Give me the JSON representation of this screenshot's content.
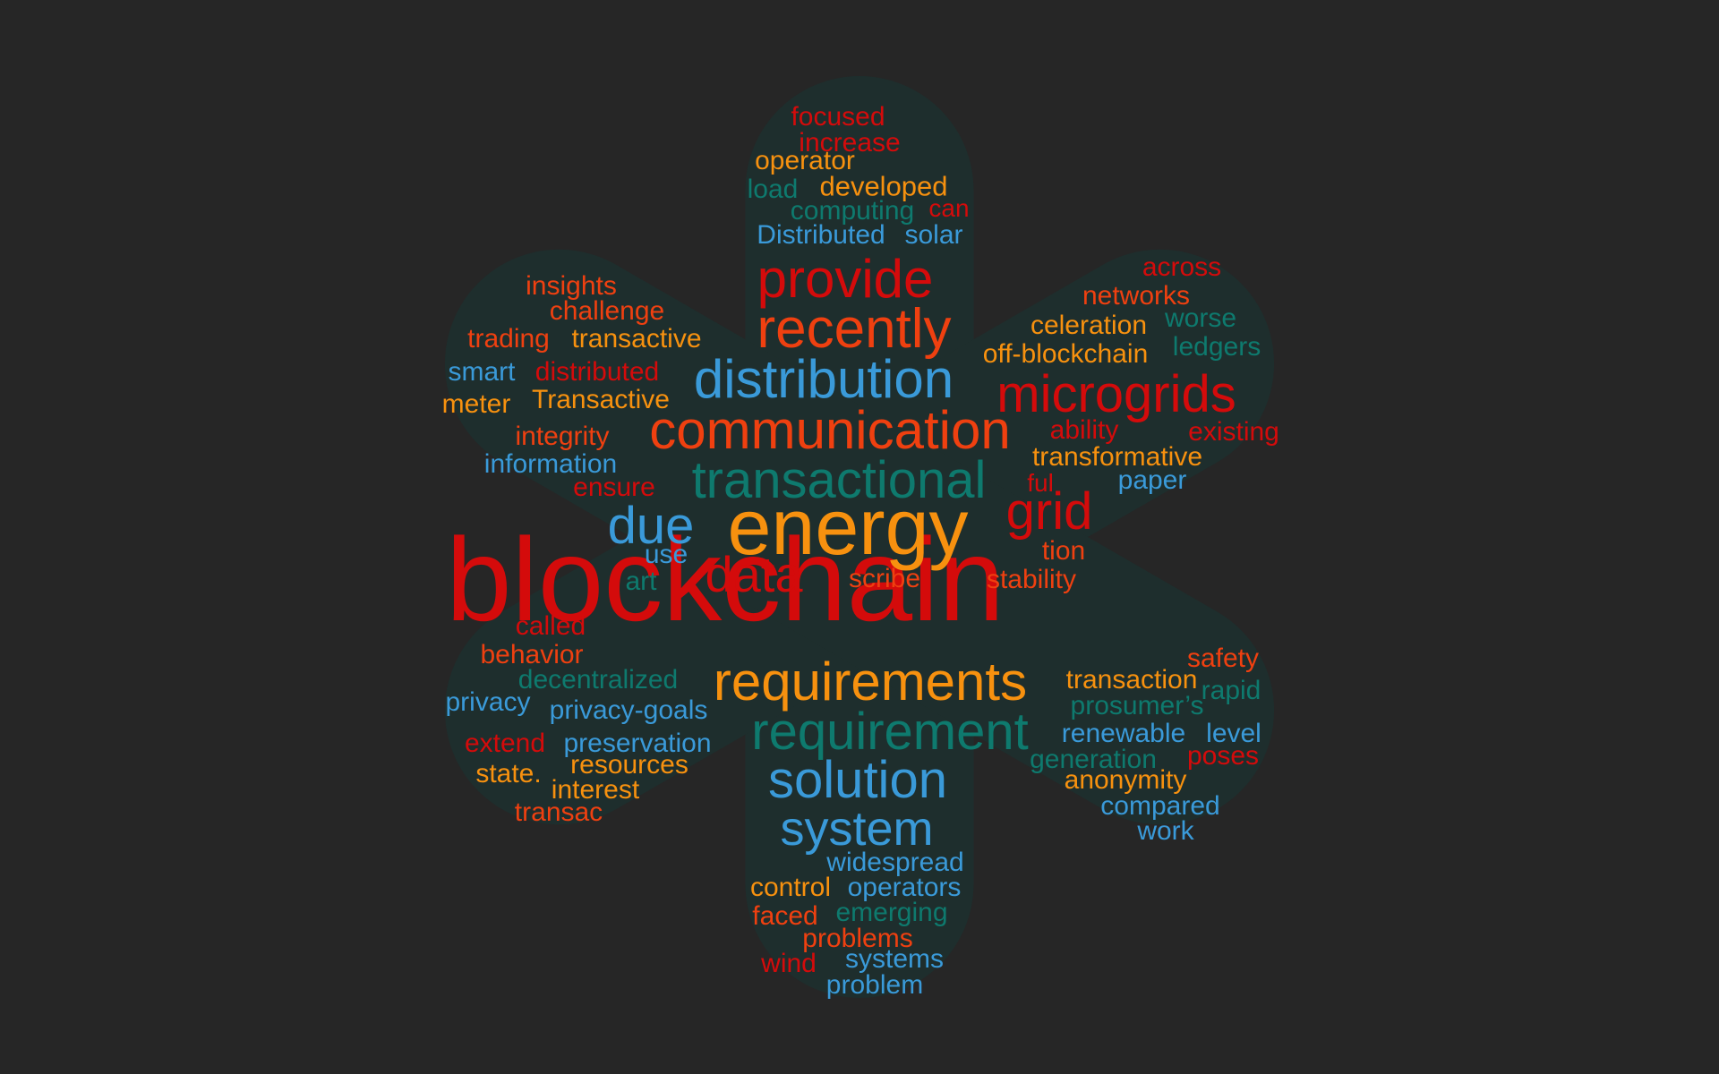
{
  "colors": {
    "background": "#262626",
    "shape_fill": "#1e2e2d",
    "red": "#d40b0b",
    "orange_red": "#ef4010",
    "orange": "#f7910f",
    "blue": "#3a9ad9",
    "teal": "#0e7a6e"
  },
  "words": [
    {
      "text": "blockchain",
      "color": "red"
    },
    {
      "text": "energy",
      "color": "orange"
    },
    {
      "text": "communication",
      "color": "orange_red"
    },
    {
      "text": "transactional",
      "color": "teal"
    },
    {
      "text": "distribution",
      "color": "blue"
    },
    {
      "text": "microgrids",
      "color": "red"
    },
    {
      "text": "recently",
      "color": "orange_red"
    },
    {
      "text": "provide",
      "color": "red"
    },
    {
      "text": "requirements",
      "color": "orange"
    },
    {
      "text": "requirement",
      "color": "teal"
    },
    {
      "text": "solution",
      "color": "blue"
    },
    {
      "text": "system",
      "color": "blue"
    },
    {
      "text": "grid",
      "color": "red"
    },
    {
      "text": "data",
      "color": "red"
    },
    {
      "text": "due",
      "color": "blue"
    },
    {
      "text": "focused",
      "color": "red"
    },
    {
      "text": "increase",
      "color": "red"
    },
    {
      "text": "operator",
      "color": "orange"
    },
    {
      "text": "developed",
      "color": "orange"
    },
    {
      "text": "load",
      "color": "teal"
    },
    {
      "text": "computing",
      "color": "teal"
    },
    {
      "text": "can",
      "color": "red"
    },
    {
      "text": "Distributed",
      "color": "blue"
    },
    {
      "text": "solar",
      "color": "blue"
    },
    {
      "text": "insights",
      "color": "orange_red"
    },
    {
      "text": "challenge",
      "color": "orange_red"
    },
    {
      "text": "trading",
      "color": "orange_red"
    },
    {
      "text": "transactive",
      "color": "orange"
    },
    {
      "text": "smart",
      "color": "blue"
    },
    {
      "text": "distributed",
      "color": "red"
    },
    {
      "text": "meter",
      "color": "orange"
    },
    {
      "text": "Transactive",
      "color": "orange"
    },
    {
      "text": "integrity",
      "color": "orange_red"
    },
    {
      "text": "information",
      "color": "blue"
    },
    {
      "text": "ensure",
      "color": "red"
    },
    {
      "text": "across",
      "color": "red"
    },
    {
      "text": "networks",
      "color": "orange_red"
    },
    {
      "text": "celeration",
      "color": "orange"
    },
    {
      "text": "worse",
      "color": "teal"
    },
    {
      "text": "off-blockchain",
      "color": "orange"
    },
    {
      "text": "ledgers",
      "color": "teal"
    },
    {
      "text": "ability",
      "color": "red"
    },
    {
      "text": "existing",
      "color": "red"
    },
    {
      "text": "transformative",
      "color": "orange"
    },
    {
      "text": "ful",
      "color": "red"
    },
    {
      "text": "paper",
      "color": "blue"
    },
    {
      "text": "tion",
      "color": "orange_red"
    },
    {
      "text": "stability",
      "color": "orange_red"
    },
    {
      "text": "use",
      "color": "blue"
    },
    {
      "text": "art",
      "color": "teal"
    },
    {
      "text": "scribe",
      "color": "orange_red"
    },
    {
      "text": "called",
      "color": "red"
    },
    {
      "text": "behavior",
      "color": "orange_red"
    },
    {
      "text": "decentralized",
      "color": "teal"
    },
    {
      "text": "privacy",
      "color": "blue"
    },
    {
      "text": "privacy-goals",
      "color": "blue"
    },
    {
      "text": "extend",
      "color": "red"
    },
    {
      "text": "preservation",
      "color": "blue"
    },
    {
      "text": "state.",
      "color": "orange"
    },
    {
      "text": "resources",
      "color": "orange"
    },
    {
      "text": "interest",
      "color": "orange"
    },
    {
      "text": "transac",
      "color": "orange_red"
    },
    {
      "text": "safety",
      "color": "orange_red"
    },
    {
      "text": "transaction",
      "color": "orange"
    },
    {
      "text": "prosumer’s",
      "color": "teal"
    },
    {
      "text": "rapid",
      "color": "teal"
    },
    {
      "text": "renewable",
      "color": "blue"
    },
    {
      "text": "level",
      "color": "blue"
    },
    {
      "text": "generation",
      "color": "teal"
    },
    {
      "text": "poses",
      "color": "red"
    },
    {
      "text": "anonymity",
      "color": "orange"
    },
    {
      "text": "compared",
      "color": "blue"
    },
    {
      "text": "work",
      "color": "blue"
    },
    {
      "text": "widespread",
      "color": "blue"
    },
    {
      "text": "control",
      "color": "orange"
    },
    {
      "text": "operators",
      "color": "blue"
    },
    {
      "text": "faced",
      "color": "orange_red"
    },
    {
      "text": "emerging",
      "color": "teal"
    },
    {
      "text": "problems",
      "color": "orange_red"
    },
    {
      "text": "wind",
      "color": "red"
    },
    {
      "text": "systems",
      "color": "blue"
    },
    {
      "text": "problem",
      "color": "blue"
    }
  ]
}
